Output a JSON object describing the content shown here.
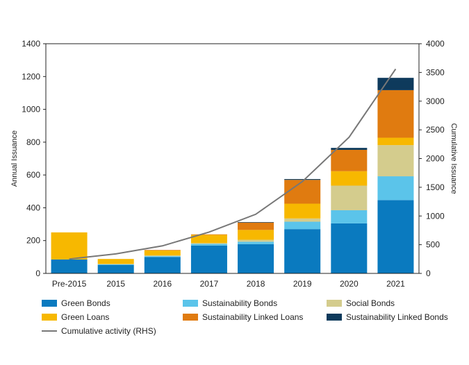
{
  "chart_data": {
    "type": "bar",
    "stacked": true,
    "categories": [
      "Pre-2015",
      "2015",
      "2016",
      "2017",
      "2018",
      "2019",
      "2020",
      "2021"
    ],
    "ylabel": "Annual Issuance",
    "ylabel_right": "Cumulative Issuance",
    "ylim": [
      0,
      1400
    ],
    "ylim_right": [
      0,
      4000
    ],
    "yticks": [
      "0",
      "200",
      "400",
      "600",
      "800",
      "1000",
      "1200",
      "1400"
    ],
    "yticks_right": [
      "0",
      "500",
      "1000",
      "1500",
      "2000",
      "2500",
      "3000",
      "3500",
      "4000"
    ],
    "grid": false,
    "legend_position": "bottom",
    "series": [
      {
        "name": "Green Bonds",
        "color": "#0a7abf",
        "values": [
          85,
          52,
          100,
          170,
          178,
          270,
          305,
          447
        ]
      },
      {
        "name": "Sustainability Bonds",
        "color": "#5bc4ea",
        "values": [
          0,
          3,
          5,
          10,
          15,
          45,
          80,
          145
        ]
      },
      {
        "name": "Social Bonds",
        "color": "#d4cc8d",
        "values": [
          0,
          3,
          5,
          5,
          12,
          20,
          150,
          190
        ]
      },
      {
        "name": "Green Loans",
        "color": "#f7b800",
        "values": [
          165,
          30,
          30,
          50,
          60,
          90,
          88,
          45
        ]
      },
      {
        "name": "Sustainability Linked Loans",
        "color": "#e07b10",
        "values": [
          0,
          0,
          3,
          3,
          45,
          145,
          130,
          290
        ]
      },
      {
        "name": "Sustainability Linked Bonds",
        "color": "#0e3a5c",
        "values": [
          0,
          0,
          0,
          0,
          3,
          5,
          12,
          75
        ]
      }
    ],
    "line_series": {
      "name": "Cumulative activity (RHS)",
      "color": "#777777",
      "axis": "right",
      "values": [
        250,
        340,
        480,
        720,
        1030,
        1600,
        2370,
        3560
      ]
    }
  }
}
